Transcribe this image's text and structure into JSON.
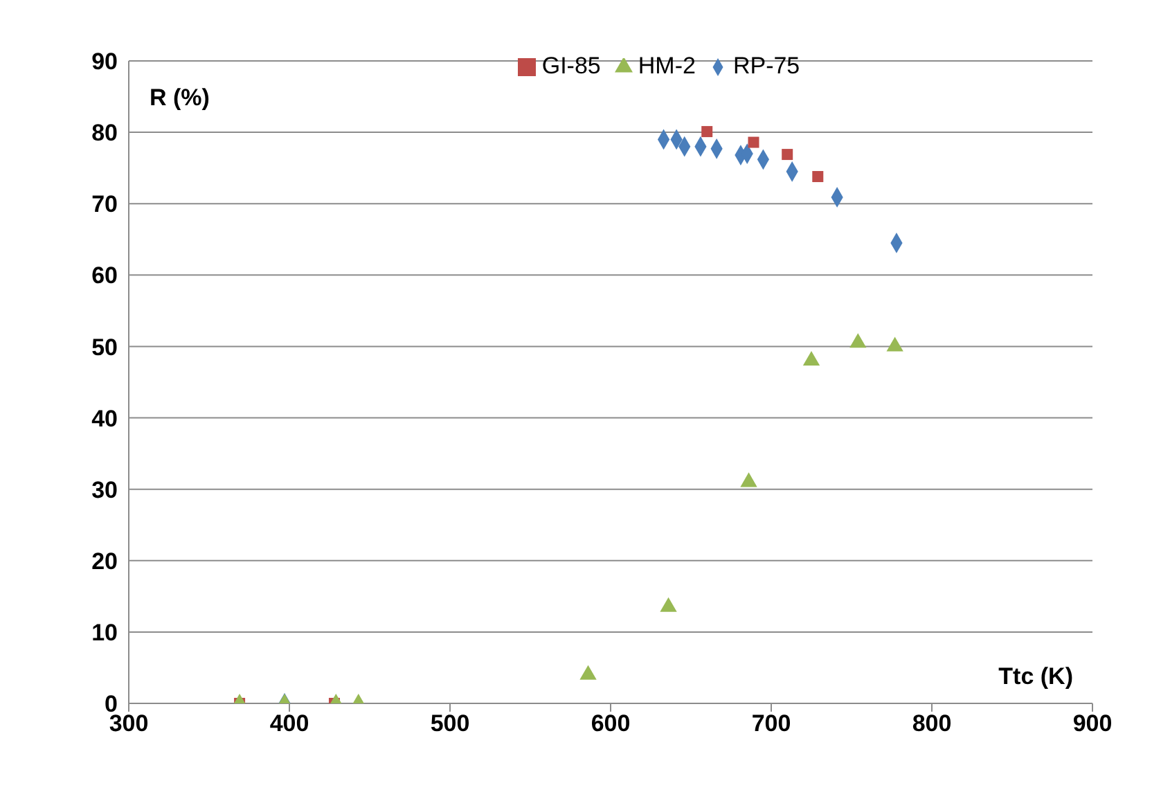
{
  "chart_data": {
    "type": "scatter",
    "xlabel": "Ttc (K)",
    "ylabel": "R (%)",
    "xlim": [
      300,
      900
    ],
    "xticks": [
      300,
      400,
      500,
      600,
      700,
      800,
      900
    ],
    "ylim": [
      0,
      90
    ],
    "yticks": [
      0,
      10,
      20,
      30,
      40,
      50,
      60,
      70,
      80,
      90
    ],
    "grid": "y",
    "legend": "top",
    "series": [
      {
        "name": "RP-75",
        "color": "#4a7ebb",
        "marker": "diamond",
        "x": [
          397,
          633,
          641,
          646,
          656,
          666,
          681,
          685,
          695,
          713,
          741,
          778
        ],
        "values": [
          0,
          79,
          79,
          78,
          78,
          77.7,
          76.8,
          77,
          76.2,
          74.5,
          70.9,
          64.5
        ]
      },
      {
        "name": "GI-85",
        "color": "#be4b48",
        "marker": "square",
        "x": [
          369,
          428,
          660,
          689,
          710,
          729
        ],
        "values": [
          0,
          0,
          80.1,
          78.6,
          76.9,
          73.8
        ]
      },
      {
        "name": "HM-2",
        "color": "#98b954",
        "marker": "triangle",
        "x": [
          369,
          397,
          429,
          443,
          586,
          636,
          686,
          725,
          754,
          777
        ],
        "values": [
          0,
          0,
          0,
          0,
          4,
          13.5,
          31,
          48,
          50.5,
          50
        ]
      }
    ]
  }
}
